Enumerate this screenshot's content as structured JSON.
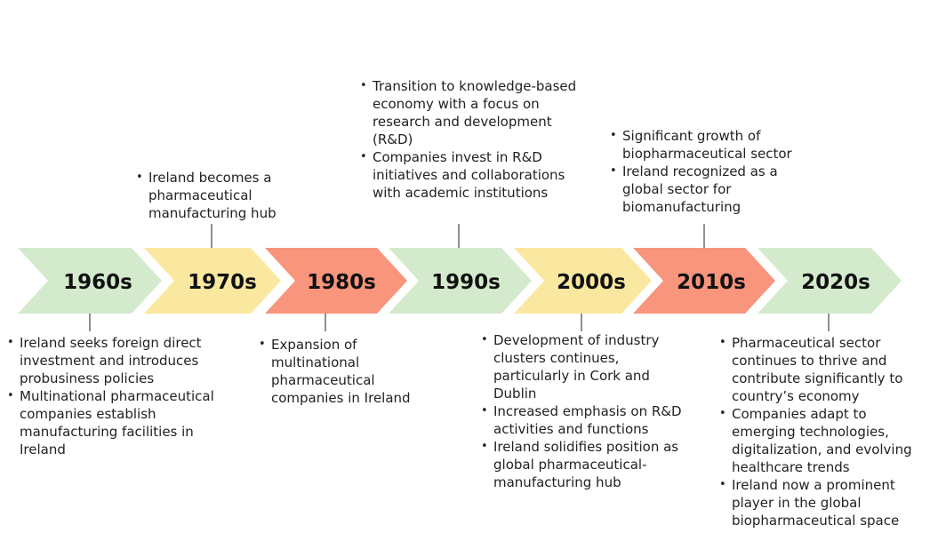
{
  "colors": {
    "green": "#d3ebcc",
    "yellow": "#fbe8a0",
    "salmon": "#f8957c",
    "connector": "#555555"
  },
  "timeline": [
    {
      "decade": "1960s",
      "color": "green",
      "position": "below",
      "notes": [
        "Ireland seeks foreign direct investment and introduces probusiness policies",
        "Multinational pharmaceutical companies establish manufacturing facilities in Ireland"
      ]
    },
    {
      "decade": "1970s",
      "color": "yellow",
      "position": "above",
      "notes": [
        "Ireland becomes a pharmaceutical manufacturing hub"
      ]
    },
    {
      "decade": "1980s",
      "color": "salmon",
      "position": "below",
      "notes": [
        "Expansion of multinational pharmaceutical companies in Ireland"
      ]
    },
    {
      "decade": "1990s",
      "color": "green",
      "position": "above",
      "notes": [
        "Transition to knowledge-based economy with a focus on research and development (R&D)",
        "Companies invest in R&D initiatives and collaborations with academic institutions"
      ]
    },
    {
      "decade": "2000s",
      "color": "yellow",
      "position": "below",
      "notes": [
        "Development of industry clusters continues, particularly in Cork and Dublin",
        "Increased emphasis on R&D activities and functions",
        "Ireland solidifies position as global pharmaceutical-manufacturing hub"
      ]
    },
    {
      "decade": "2010s",
      "color": "salmon",
      "position": "above",
      "notes": [
        "Significant growth of biopharmaceutical sector",
        "Ireland recognized as a global sector for biomanufacturing"
      ]
    },
    {
      "decade": "2020s",
      "color": "green",
      "position": "below",
      "notes": [
        "Pharmaceutical sector continues to thrive and contribute significantly to country’s economy",
        "Companies adapt to emerging technologies, digitalization, and evolving healthcare trends",
        "Ireland now a prominent player in the global biopharmaceutical space"
      ]
    }
  ]
}
